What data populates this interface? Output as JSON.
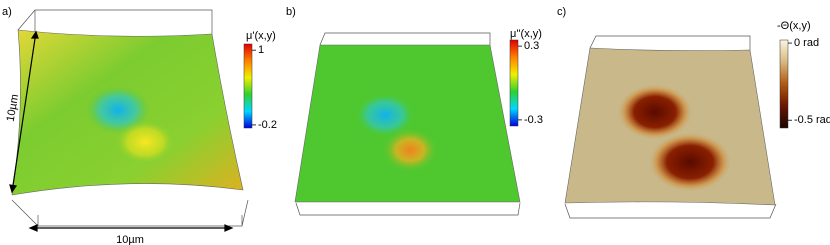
{
  "chart_data": [
    {
      "type": "surface",
      "panel_label": "a)",
      "colorbar_label": "μ'(x,y)",
      "clim": [
        -0.25,
        1.1
      ],
      "cticks": [
        1,
        -0.2
      ],
      "colormap": [
        "#0000e0",
        "#00d8ff",
        "#30d030",
        "#f0f000",
        "#ff8000",
        "#e00000"
      ],
      "x_label": "10µm",
      "y_label": "10µm"
    },
    {
      "type": "surface",
      "panel_label": "b)",
      "colorbar_label": "μ''(x,y)",
      "clim": [
        -0.35,
        0.35
      ],
      "cticks": [
        0.3,
        -0.3
      ],
      "colormap": [
        "#0000e0",
        "#00d8ff",
        "#30d030",
        "#f0f000",
        "#ff8000",
        "#e00000"
      ]
    },
    {
      "type": "surface",
      "panel_label": "c)",
      "colorbar_label": "-Θ(x,y)",
      "clim": [
        -0.55,
        0.02
      ],
      "cticks": [
        {
          "value": 0,
          "label": "0 rad"
        },
        {
          "value": -0.5,
          "label": "-0.5 rad"
        }
      ],
      "colormap": [
        "#1a0500",
        "#6a1500",
        "#b05a10",
        "#d8b880",
        "#fbf5e0"
      ]
    }
  ]
}
